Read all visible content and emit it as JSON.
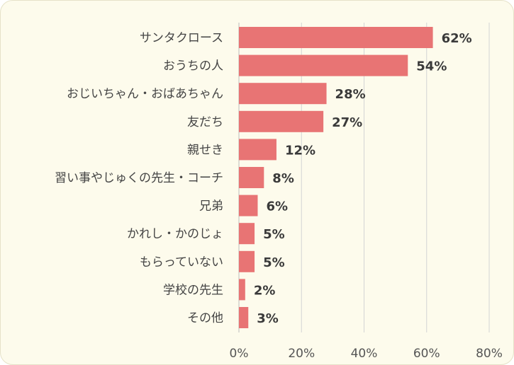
{
  "chart_data": {
    "type": "bar",
    "orientation": "horizontal",
    "categories": [
      "サンタクロース",
      "おうちの人",
      "おじいちゃん・おばあちゃん",
      "友だち",
      "親せき",
      "習い事やじゅくの先生・コーチ",
      "兄弟",
      "かれし・かのじょ",
      "もらっていない",
      "学校の先生",
      "その他"
    ],
    "values": [
      62,
      54,
      28,
      27,
      12,
      8,
      6,
      5,
      5,
      2,
      3
    ],
    "value_labels": [
      "62%",
      "54%",
      "28%",
      "27%",
      "12%",
      "8%",
      "6%",
      "5%",
      "5%",
      "2%",
      "3%"
    ],
    "xlim": [
      0,
      80
    ],
    "xticks": [
      0,
      20,
      40,
      60,
      80
    ],
    "xtick_labels": [
      "0%",
      "20%",
      "40%",
      "60%",
      "80%"
    ],
    "grid": "vertical",
    "colors": {
      "bar": "#e87474",
      "grid": "#d4d4d4",
      "background": "#fdfbec"
    }
  }
}
